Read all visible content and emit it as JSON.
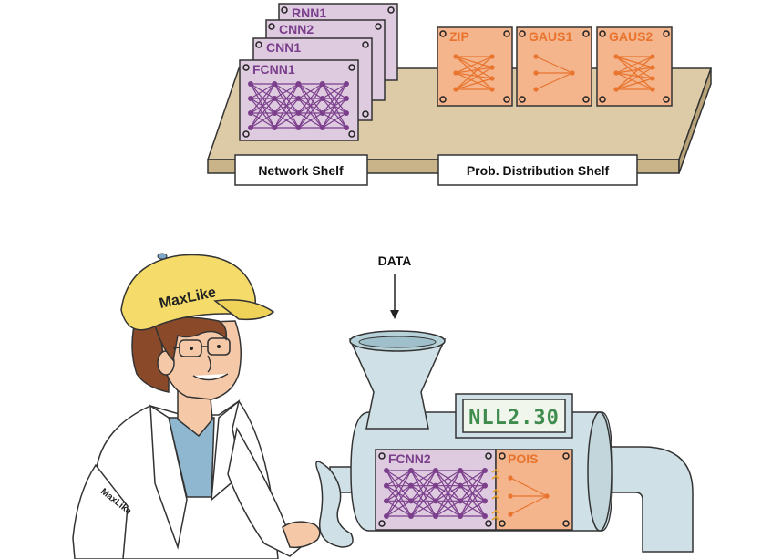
{
  "shelf": {
    "network_cards": [
      {
        "label": "RNN1"
      },
      {
        "label": "CNN2"
      },
      {
        "label": "CNN1"
      },
      {
        "label": "FCNN1"
      }
    ],
    "distribution_cards": [
      {
        "label": "ZIP"
      },
      {
        "label": "GAUS1"
      },
      {
        "label": "GAUS2"
      }
    ],
    "network_shelf_label": "Network Shelf",
    "distribution_shelf_label": "Prob. Distribution Shelf"
  },
  "machine": {
    "data_label": "DATA",
    "display_text": "NLL2.30",
    "network_card_label": "FCNN2",
    "distribution_card_label": "POIS"
  },
  "character": {
    "cap_text": "MaxLike",
    "sleeve_text": "MaxLike"
  },
  "colors": {
    "network_card": "#dfcbe0",
    "network_text": "#7b3f8c",
    "distribution_card": "#f4b48c",
    "distribution_text": "#e8742e",
    "shelf": "#dccba6",
    "machine": "#cfe1e6",
    "display_bg": "#f0f6ec",
    "display_text": "#3f8c4e",
    "cap": "#f4db6a"
  }
}
